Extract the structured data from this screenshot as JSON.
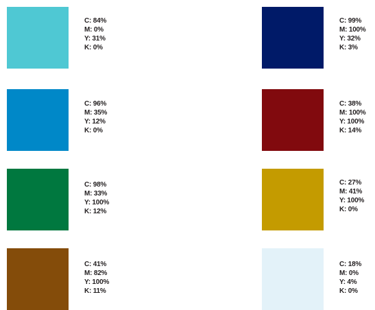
{
  "swatches": [
    {
      "id": "teal",
      "color": "#4fc8d3",
      "c": "C: 84%",
      "m": "M: 0%",
      "y": "Y: 31%",
      "k": "K: 0%"
    },
    {
      "id": "navy",
      "color": "#001a68",
      "c": "C: 99%",
      "m": "M: 100%",
      "y": "Y: 32%",
      "k": "K: 3%"
    },
    {
      "id": "blue",
      "color": "#0088c8",
      "c": "C: 96%",
      "m": "M: 35%",
      "y": "Y: 12%",
      "k": "K: 0%"
    },
    {
      "id": "crimson",
      "color": "#810a0e",
      "c": "C: 38%",
      "m": "M: 100%",
      "y": "Y: 100%",
      "k": "K: 14%"
    },
    {
      "id": "green",
      "color": "#00783f",
      "c": "C: 98%",
      "m": "M: 33%",
      "y": "Y: 100%",
      "k": "K: 12%"
    },
    {
      "id": "gold",
      "color": "#c49b00",
      "c": "C: 27%",
      "m": "M: 41%",
      "y": "Y: 100%",
      "k": "K: 0%"
    },
    {
      "id": "brown",
      "color": "#844c0a",
      "c": "C: 41%",
      "m": "M: 82%",
      "y": "Y: 100%",
      "k": "K: 11%"
    },
    {
      "id": "pale-blue",
      "color": "#e3f2f9",
      "c": "C: 18%",
      "m": "M: 0%",
      "y": "Y: 4%",
      "k": "K: 0%"
    }
  ]
}
